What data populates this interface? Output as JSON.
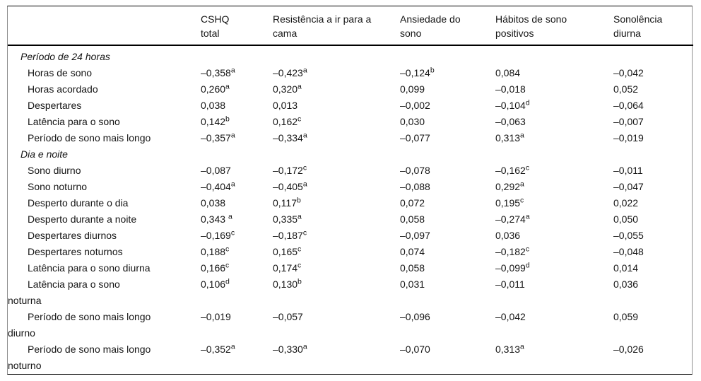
{
  "table": {
    "columns": [
      {
        "lines": []
      },
      {
        "lines": [
          "CSHQ",
          "total"
        ]
      },
      {
        "lines": [
          "Resistência a ir para a",
          "cama"
        ]
      },
      {
        "lines": [
          "Ansiedade do",
          "sono"
        ]
      },
      {
        "lines": [
          "Hábitos de sono",
          "positivos"
        ]
      },
      {
        "lines": [
          "Sonolência",
          "diurna"
        ]
      }
    ],
    "rows": [
      {
        "type": "section",
        "label": "Período de 24 horas"
      },
      {
        "type": "data",
        "label": "Horas de sono",
        "cells": [
          {
            "v": "–0,358",
            "s": "a"
          },
          {
            "v": "–0,423",
            "s": "a"
          },
          {
            "v": "–0,124",
            "s": "b"
          },
          {
            "v": "0,084"
          },
          {
            "v": "–0,042"
          }
        ]
      },
      {
        "type": "data",
        "label": "Horas acordado",
        "cells": [
          {
            "v": "0,260",
            "s": "a"
          },
          {
            "v": "0,320",
            "s": "a"
          },
          {
            "v": "0,099"
          },
          {
            "v": "–0,018"
          },
          {
            "v": "0,052"
          }
        ]
      },
      {
        "type": "data",
        "label": "Despertares",
        "cells": [
          {
            "v": "0,038"
          },
          {
            "v": "0,013"
          },
          {
            "v": "–0,002"
          },
          {
            "v": "–0,104",
            "s": "d"
          },
          {
            "v": "–0,064"
          }
        ]
      },
      {
        "type": "data",
        "label": "Latência para o sono",
        "cells": [
          {
            "v": "0,142",
            "s": "b"
          },
          {
            "v": "0,162",
            "s": "c"
          },
          {
            "v": "0,030"
          },
          {
            "v": "–0,063"
          },
          {
            "v": "–0,007"
          }
        ]
      },
      {
        "type": "data",
        "label": "Período de sono mais longo",
        "cells": [
          {
            "v": "–0,357",
            "s": "a"
          },
          {
            "v": "–0,334",
            "s": "a"
          },
          {
            "v": "–0,077"
          },
          {
            "v": "0,313",
            "s": "a"
          },
          {
            "v": "–0,019"
          }
        ]
      },
      {
        "type": "section",
        "label": "Dia e noite"
      },
      {
        "type": "data",
        "label": "Sono diurno",
        "cells": [
          {
            "v": "–0,087"
          },
          {
            "v": "–0,172",
            "s": "c"
          },
          {
            "v": "–0,078"
          },
          {
            "v": "–0,162",
            "s": "c"
          },
          {
            "v": "–0,011"
          }
        ]
      },
      {
        "type": "data",
        "label": "Sono noturno",
        "cells": [
          {
            "v": "–0,404",
            "s": "a"
          },
          {
            "v": "–0,405",
            "s": "a"
          },
          {
            "v": "–0,088"
          },
          {
            "v": "0,292",
            "s": "a"
          },
          {
            "v": "–0,047"
          }
        ]
      },
      {
        "type": "data",
        "label": "Desperto durante o dia",
        "cells": [
          {
            "v": "0,038"
          },
          {
            "v": "0,117",
            "s": "b"
          },
          {
            "v": "0,072"
          },
          {
            "v": "0,195",
            "s": "c"
          },
          {
            "v": "0,022"
          }
        ]
      },
      {
        "type": "data",
        "label": "Desperto durante a noite",
        "cells": [
          {
            "v": "0,343 ",
            "s": "a"
          },
          {
            "v": "0,335",
            "s": "a"
          },
          {
            "v": "0,058"
          },
          {
            "v": "–0,274",
            "s": "a"
          },
          {
            "v": "0,050"
          }
        ]
      },
      {
        "type": "data",
        "label": "Despertares diurnos",
        "cells": [
          {
            "v": "–0,169",
            "s": "c"
          },
          {
            "v": "–0,187",
            "s": "c"
          },
          {
            "v": "–0,097"
          },
          {
            "v": "0,036"
          },
          {
            "v": "–0,055"
          }
        ]
      },
      {
        "type": "data",
        "label": "Despertares noturnos",
        "cells": [
          {
            "v": "0,188",
            "s": "c"
          },
          {
            "v": "0,165",
            "s": "c"
          },
          {
            "v": "0,074"
          },
          {
            "v": "–0,182",
            "s": "c"
          },
          {
            "v": "–0,048"
          }
        ]
      },
      {
        "type": "data",
        "label": "Latência para o sono diurna",
        "cells": [
          {
            "v": "0,166",
            "s": "c"
          },
          {
            "v": "0,174",
            "s": "c"
          },
          {
            "v": "0,058"
          },
          {
            "v": "–0,099",
            "s": "d"
          },
          {
            "v": "0,014"
          }
        ]
      },
      {
        "type": "data",
        "label": "Latência para o sono",
        "label2": "noturna",
        "cells": [
          {
            "v": "0,106",
            "s": "d"
          },
          {
            "v": "0,130",
            "s": "b"
          },
          {
            "v": "0,031"
          },
          {
            "v": "–0,011"
          },
          {
            "v": "0,036"
          }
        ]
      },
      {
        "type": "data",
        "label": "Período de sono mais longo",
        "label2": "diurno",
        "cells": [
          {
            "v": "–0,019"
          },
          {
            "v": "–0,057"
          },
          {
            "v": "–0,096"
          },
          {
            "v": "–0,042"
          },
          {
            "v": "0,059"
          }
        ]
      },
      {
        "type": "data",
        "label": "Período de sono mais longo",
        "label2": "noturno",
        "cells": [
          {
            "v": "–0,352",
            "s": "a"
          },
          {
            "v": "–0,330",
            "s": "a"
          },
          {
            "v": "–0,070"
          },
          {
            "v": "0,313",
            "s": "a"
          },
          {
            "v": "–0,026"
          }
        ]
      }
    ]
  }
}
